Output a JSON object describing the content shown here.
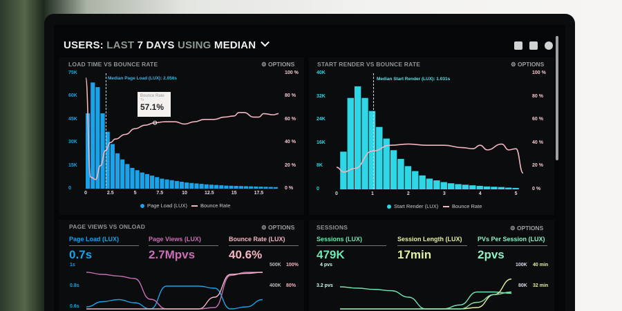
{
  "header": {
    "p1": "USERS:",
    "p2": "LAST",
    "p3": "7 DAYS",
    "p4": "USING",
    "p5": "MEDIAN",
    "chevron": "chevron-down-icon"
  },
  "header_icons": [
    "monitor-icon",
    "chart-icon",
    "help-icon"
  ],
  "options_label": "⚙ OPTIONS",
  "colors": {
    "blue": "#1aa3e8",
    "cyan": "#2ed6e6",
    "pink": "#f4b6c2",
    "purple": "#c96fb5",
    "green": "#6ee8b5",
    "yellow": "#e6f0a0",
    "mint": "#8ff0c8"
  },
  "chart_data": [
    {
      "type": "bar",
      "title": "LOAD TIME VS BOUNCE RATE",
      "xlim": [
        0,
        19.5
      ],
      "x_ticks": [
        "0",
        "2.5",
        "5",
        "7.5",
        "10",
        "12.5",
        "15",
        "17.5"
      ],
      "y_ticks": [
        "75K",
        "60K",
        "45K",
        "30K",
        "15K",
        "0"
      ],
      "ylim": [
        0,
        75000
      ],
      "y2_ticks": [
        "100 %",
        "80 %",
        "60 %",
        "40 %",
        "20 %",
        "0 %"
      ],
      "y2lim": [
        0,
        100
      ],
      "median_label": "Median Page Load (LUX): 2.056s",
      "median": 2.056,
      "tooltip": {
        "title": "Bounce Rate",
        "sub": "7s",
        "value": "57.1%"
      },
      "series": [
        {
          "name": "Page Load (LUX)",
          "bar_width": 0.5,
          "values": [
            49000,
            69000,
            66000,
            49000,
            37000,
            29000,
            23000,
            19000,
            16000,
            13500,
            12000,
            10500,
            9500,
            8500,
            7500,
            6500,
            6000,
            5500,
            5000,
            4500,
            4000,
            3700,
            3400,
            3100,
            2800,
            2600,
            2400,
            2200,
            2000,
            1900,
            1800,
            1700,
            1600,
            1500,
            1400,
            1300,
            1200,
            1100,
            1000
          ]
        },
        {
          "name": "Bounce Rate",
          "points": [
            [
              0,
              96
            ],
            [
              0.5,
              10
            ],
            [
              1,
              8
            ],
            [
              1.5,
              20
            ],
            [
              2,
              33
            ],
            [
              2.5,
              40
            ],
            [
              3,
              43
            ],
            [
              4,
              47
            ],
            [
              5,
              52
            ],
            [
              6,
              55
            ],
            [
              7,
              57.1
            ],
            [
              8,
              58
            ],
            [
              9,
              58
            ],
            [
              10,
              56
            ],
            [
              11,
              58
            ],
            [
              12,
              60
            ],
            [
              13,
              60
            ],
            [
              14,
              62
            ],
            [
              15,
              63
            ],
            [
              15.5,
              66
            ],
            [
              16,
              66
            ],
            [
              17,
              62
            ],
            [
              17.5,
              62
            ],
            [
              18,
              65
            ],
            [
              19,
              64
            ],
            [
              19.5,
              65
            ]
          ]
        }
      ]
    },
    {
      "type": "bar",
      "title": "START RENDER VS BOUNCE RATE",
      "xlim": [
        0,
        5.2
      ],
      "x_ticks": [
        "0",
        "1",
        "2",
        "3",
        "4",
        "5"
      ],
      "y_ticks": [
        "40K",
        "32K",
        "24K",
        "16K",
        "8K",
        "0"
      ],
      "ylim": [
        0,
        40000
      ],
      "y2_ticks": [
        "100 %",
        "80 %",
        "60 %",
        "40 %",
        "20 %",
        "0 %"
      ],
      "y2lim": [
        0,
        100
      ],
      "median_label": "Median Start Render (LUX): 1.031s",
      "median": 1.031,
      "series": [
        {
          "name": "Start Render (LUX)",
          "bar_width": 0.2,
          "values": [
            13000,
            31500,
            35500,
            31500,
            27000,
            21500,
            17500,
            13500,
            10500,
            8000,
            6300,
            4800,
            3700,
            3100,
            2500,
            2100,
            1800,
            1600,
            1400,
            1200,
            1000,
            900,
            800,
            600,
            500
          ]
        },
        {
          "name": "Bounce Rate",
          "points": [
            [
              0,
              19
            ],
            [
              0.2,
              15
            ],
            [
              0.5,
              18
            ],
            [
              1,
              33
            ],
            [
              1.5,
              38
            ],
            [
              2,
              39
            ],
            [
              2.5,
              38
            ],
            [
              3,
              38
            ],
            [
              3.5,
              36
            ],
            [
              3.8,
              35
            ],
            [
              4,
              38
            ],
            [
              4.2,
              34
            ],
            [
              4.6,
              39
            ],
            [
              4.8,
              34
            ],
            [
              5,
              35
            ],
            [
              5.2,
              14
            ]
          ]
        }
      ]
    },
    {
      "type": "line",
      "title": "PAGE VIEWS VS ONLOAD",
      "y_ticks": [
        "1s",
        "0.8s",
        "0.6s"
      ],
      "y2_ticks": [
        "500K",
        "400K"
      ],
      "y3_ticks": [
        "100%",
        "80%"
      ],
      "kpis": [
        {
          "label": "Page Load (LUX)",
          "value": "0.7s"
        },
        {
          "label": "Page Views (LUX)",
          "value": "2.7Mpvs"
        },
        {
          "label": "Bounce Rate (LUX)",
          "value": "40.6%"
        }
      ],
      "series": [
        {
          "name": "Page Load",
          "values": [
            0.6,
            0.65,
            0.67,
            0.64,
            0.58,
            0.8,
            0.8,
            0.8,
            0.78,
            0.58,
            0.6,
            0.67
          ]
        },
        {
          "name": "Page Views",
          "values": [
            470,
            460,
            452,
            440,
            340,
            260,
            250,
            250,
            300,
            455,
            470,
            470
          ]
        },
        {
          "name": "Bounce Rate",
          "values": [
            30,
            30,
            30,
            30,
            30,
            30,
            30,
            40,
            70,
            92,
            93,
            94
          ]
        }
      ]
    },
    {
      "type": "line",
      "title": "SESSIONS",
      "y_ticks": [
        "4 pvs",
        "3.2 pvs"
      ],
      "y2_ticks": [
        "100K",
        "80K"
      ],
      "y3_ticks": [
        "40 min",
        "32 min"
      ],
      "kpis": [
        {
          "label": "Sessions (LUX)",
          "value": "479K"
        },
        {
          "label": "Session Length (LUX)",
          "value": "17min"
        },
        {
          "label": "PVs Per Session (LUX)",
          "value": "2pvs"
        }
      ],
      "series": [
        {
          "name": "Sessions",
          "values": [
            3.2,
            3.15,
            3.1,
            3.05,
            2.8,
            2.3,
            2.2,
            2.5,
            3.0,
            3.0,
            2.95
          ]
        },
        {
          "name": "Session Length",
          "values": [
            20,
            20,
            20,
            20,
            20,
            20,
            20,
            20,
            24,
            29,
            35
          ]
        },
        {
          "name": "PVs Per Session",
          "values": [
            2.2,
            2.2,
            2.2,
            2.2,
            2.2,
            2.2,
            2.2,
            2.3,
            2.6,
            2.9,
            3.0
          ]
        }
      ]
    }
  ]
}
